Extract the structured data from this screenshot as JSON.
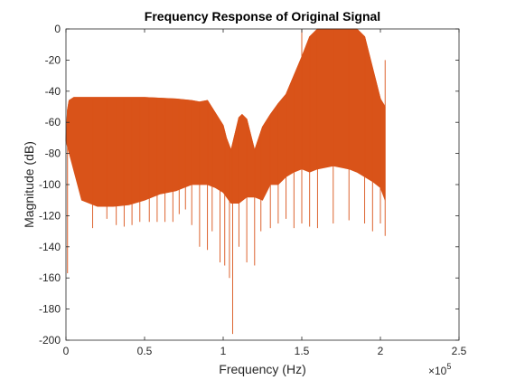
{
  "chart_data": {
    "type": "line",
    "title": "Frequency Response of Original Signal",
    "xlabel": "Frequency (Hz)",
    "ylabel": "Magnitude (dB)",
    "x_exponent_label": "×10",
    "x_exponent_power": "5",
    "xlim": [
      0,
      2.5
    ],
    "ylim": [
      -200,
      0
    ],
    "x_scale_note": "",
    "xticks": [
      0,
      0.5,
      1,
      1.5,
      2,
      2.5
    ],
    "xtick_labels": [
      "0",
      "0.5",
      "1",
      "1.5",
      "2",
      "2.5"
    ],
    "yticks": [
      0,
      -20,
      -40,
      -60,
      -80,
      -100,
      -120,
      -140,
      -160,
      -180,
      -200
    ],
    "ytick_labels": [
      "0",
      "-20",
      "-40",
      "-60",
      "-80",
      "-100",
      "-120",
      "-140",
      "-160",
      "-180",
      "-200"
    ],
    "grid": false,
    "series": [
      {
        "color": "#D95319",
        "upper_envelope": {
          "x": [
            0,
            0.01,
            0.02,
            0.05,
            0.1,
            0.2,
            0.3,
            0.5,
            0.7,
            0.8,
            0.85,
            0.9,
            1.0,
            1.02,
            1.05,
            1.1,
            1.12,
            1.15,
            1.2,
            1.25,
            1.3,
            1.35,
            1.4,
            1.45,
            1.5,
            1.55,
            1.6,
            1.7,
            1.8,
            1.85,
            1.9,
            1.95,
            2.0,
            2.03
          ],
          "y": [
            -72,
            -52,
            -46,
            -44,
            -44,
            -44,
            -44,
            -44,
            -45,
            -46,
            -47,
            -46,
            -62,
            -70,
            -78,
            -57,
            -55,
            -58,
            -78,
            -63,
            -55,
            -48,
            -42,
            -30,
            -18,
            -5,
            0,
            0,
            0,
            0,
            -5,
            -25,
            -45,
            -50
          ]
        },
        "lower_envelope": {
          "x": [
            0,
            0.1,
            0.2,
            0.3,
            0.4,
            0.5,
            0.6,
            0.7,
            0.75,
            0.8,
            0.85,
            0.9,
            0.95,
            1.0,
            1.05,
            1.1,
            1.15,
            1.2,
            1.25,
            1.3,
            1.35,
            1.4,
            1.45,
            1.5,
            1.55,
            1.6,
            1.7,
            1.8,
            1.85,
            1.9,
            1.95,
            2.0,
            2.03
          ],
          "y": [
            -72,
            -110,
            -114,
            -114,
            -113,
            -110,
            -106,
            -104,
            -102,
            -100,
            -100,
            -100,
            -102,
            -105,
            -112,
            -112,
            -108,
            -108,
            -110,
            -100,
            -100,
            -95,
            -92,
            -90,
            -92,
            -90,
            -88,
            -90,
            -92,
            -95,
            -98,
            -102,
            -110
          ]
        },
        "nulls": {
          "x": [
            0.01,
            0.17,
            0.26,
            0.32,
            0.37,
            0.42,
            0.47,
            0.53,
            0.58,
            0.63,
            0.68,
            0.72,
            0.76,
            0.8,
            0.85,
            0.9,
            0.93,
            0.98,
            1.01,
            1.04,
            1.06,
            1.1,
            1.15,
            1.2,
            1.24,
            1.3,
            1.35,
            1.4,
            1.45,
            1.5,
            1.55,
            1.6,
            1.7,
            1.8,
            1.9,
            1.95,
            2.0,
            2.03
          ],
          "y": [
            -157,
            -128,
            -122,
            -126,
            -127,
            -126,
            -124,
            -124,
            -124,
            -124,
            -124,
            -119,
            -116,
            -126,
            -140,
            -142,
            -130,
            -150,
            -152,
            -160,
            -196,
            -140,
            -150,
            -152,
            -130,
            -128,
            -125,
            -122,
            -128,
            -125,
            -127,
            -128,
            -125,
            -123,
            -125,
            -130,
            -125,
            -133
          ]
        },
        "spikes": {
          "x": [
            1.5,
            2.03
          ],
          "y": [
            0,
            -20
          ]
        }
      }
    ]
  }
}
